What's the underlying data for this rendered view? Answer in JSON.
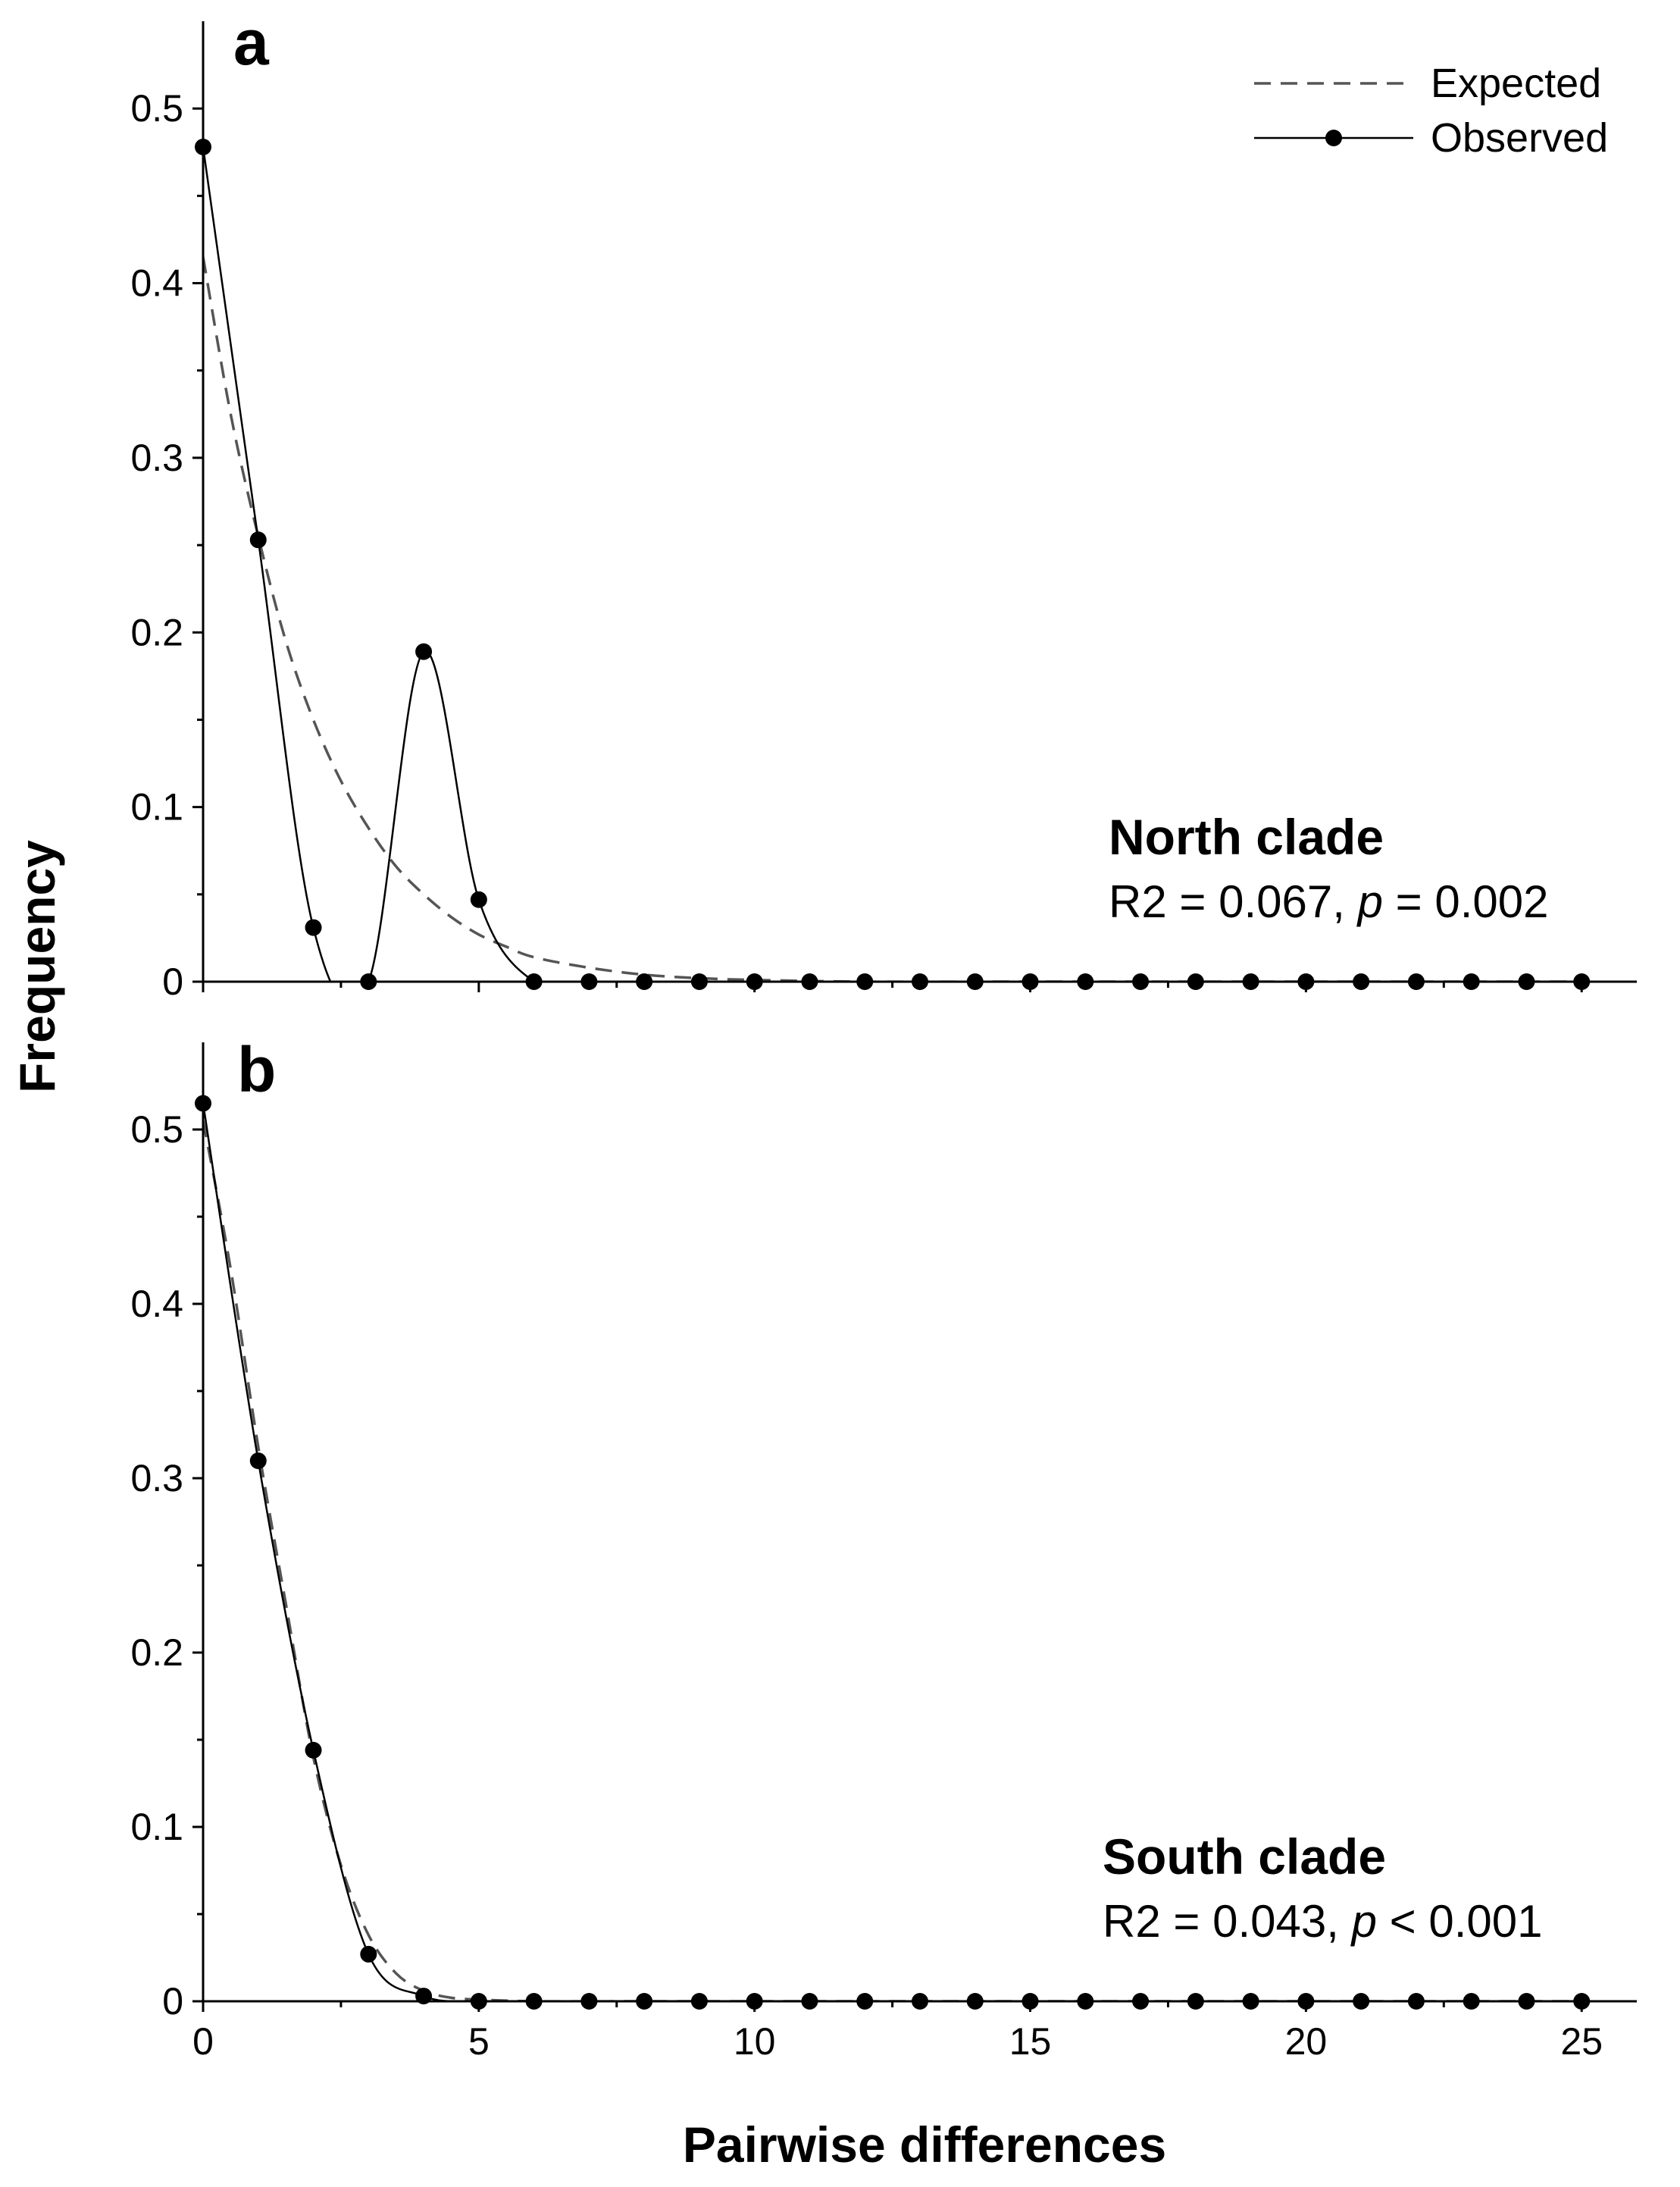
{
  "x_axis_title": "Pairwise differences",
  "y_axis_title": "Frequency",
  "legend": [
    {
      "label": "Expected",
      "style": "dashed",
      "color": "#555555"
    },
    {
      "label": "Observed",
      "style": "solid-with-dots",
      "color": "#000000"
    }
  ],
  "chart_data": [
    {
      "type": "line",
      "panel": "a",
      "annotation_title": "North clade",
      "annotation_stat_prefix": "R2 = 0.067, ",
      "annotation_stat_italic": "p",
      "annotation_stat_suffix": " = 0.002",
      "xlim": [
        0,
        26
      ],
      "ylim": [
        0,
        0.55
      ],
      "x_ticks": [
        0,
        5,
        10,
        15,
        20,
        25
      ],
      "x_tick_labels": [
        "0",
        "5",
        "10",
        "15",
        "20",
        "25"
      ],
      "y_ticks": [
        0,
        0.1,
        0.2,
        0.3,
        0.4,
        0.5
      ],
      "y_tick_labels": [
        "0",
        "0.1",
        "0.2",
        "0.3",
        "0.4",
        "0.5"
      ],
      "series": [
        {
          "name": "Observed",
          "x": [
            0,
            1,
            2,
            3,
            4,
            5,
            6,
            7,
            8,
            9,
            10,
            11,
            12,
            13,
            14,
            15,
            16,
            17,
            18,
            19,
            20,
            21,
            22,
            23,
            24,
            25
          ],
          "values": [
            0.478,
            0.253,
            0.031,
            0,
            0.189,
            0.047,
            0,
            0,
            0,
            0,
            0,
            0,
            0,
            0,
            0,
            0,
            0,
            0,
            0,
            0,
            0,
            0,
            0,
            0,
            0,
            0
          ]
        },
        {
          "name": "Expected",
          "x": [
            0,
            0.5,
            1,
            1.5,
            2,
            2.5,
            3,
            3.5,
            4,
            4.5,
            5,
            5.5,
            6,
            7,
            8,
            9,
            10,
            12,
            15,
            20,
            25
          ],
          "values": [
            0.415,
            0.325,
            0.255,
            0.195,
            0.15,
            0.115,
            0.088,
            0.066,
            0.05,
            0.037,
            0.027,
            0.02,
            0.014,
            0.008,
            0.004,
            0.002,
            0.001,
            0,
            0,
            0,
            0
          ]
        }
      ]
    },
    {
      "type": "line",
      "panel": "b",
      "annotation_title": "South clade",
      "annotation_stat_prefix": "R2 = 0.043, ",
      "annotation_stat_italic": "p",
      "annotation_stat_suffix": " < 0.001",
      "xlim": [
        0,
        26
      ],
      "ylim": [
        0,
        0.55
      ],
      "x_ticks": [
        0,
        5,
        10,
        15,
        20,
        25
      ],
      "x_tick_labels": [
        "0",
        "5",
        "10",
        "15",
        "20",
        "25"
      ],
      "y_ticks": [
        0,
        0.1,
        0.2,
        0.3,
        0.4,
        0.5
      ],
      "y_tick_labels": [
        "0",
        "0.1",
        "0.2",
        "0.3",
        "0.4",
        "0.5"
      ],
      "series": [
        {
          "name": "Observed",
          "x": [
            0,
            1,
            2,
            3,
            4,
            5,
            6,
            7,
            8,
            9,
            10,
            11,
            12,
            13,
            14,
            15,
            16,
            17,
            18,
            19,
            20,
            21,
            22,
            23,
            24,
            25
          ],
          "values": [
            0.515,
            0.31,
            0.144,
            0.027,
            0.003,
            0,
            0,
            0,
            0,
            0,
            0,
            0,
            0,
            0,
            0,
            0,
            0,
            0,
            0,
            0,
            0,
            0,
            0,
            0,
            0,
            0
          ]
        },
        {
          "name": "Expected",
          "x": [
            0,
            0.5,
            1,
            1.5,
            2,
            2.5,
            3,
            3.5,
            4,
            4.5,
            5,
            6,
            8,
            10,
            15,
            20,
            25
          ],
          "values": [
            0.505,
            0.42,
            0.318,
            0.228,
            0.14,
            0.078,
            0.038,
            0.016,
            0.006,
            0.002,
            0.001,
            0,
            0,
            0,
            0,
            0,
            0
          ]
        }
      ]
    }
  ]
}
